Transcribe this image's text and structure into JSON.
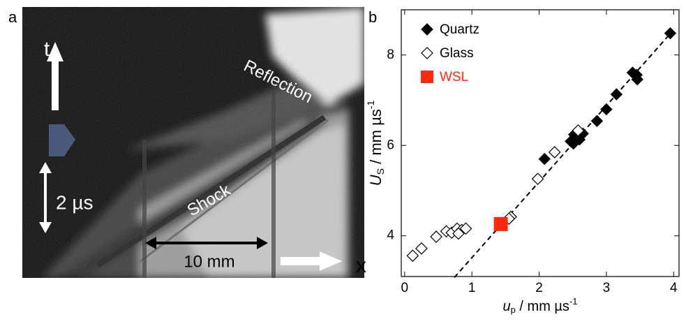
{
  "panel_a": {
    "label": "a",
    "time_axis": "t",
    "time_scale": "2 µs",
    "shock": "Shock",
    "reflection": "Reflection",
    "length_scale": "10 mm",
    "space_axis": "x"
  },
  "chart_data": {
    "type": "scatter",
    "label": "b",
    "x_label": {
      "symbol": "u",
      "subscript": "p",
      "unit": " / mm µs",
      "exponent": "-1"
    },
    "y_label": {
      "symbol": "U",
      "subscript": "S",
      "unit": " / mm µs",
      "exponent": "-1"
    },
    "xlim": [
      -0.05,
      4.08
    ],
    "ylim": [
      3.1,
      9.0
    ],
    "xticks": [
      0,
      1,
      2,
      3,
      4
    ],
    "yticks": [
      4,
      6,
      8
    ],
    "series": [
      {
        "name": "Quartz",
        "color": "#000000",
        "marker": "diamond-filled",
        "x": [
          3.95,
          3.45,
          3.39,
          3.46,
          3.15,
          3.0,
          2.86,
          2.65,
          2.55,
          2.47,
          2.51,
          2.6,
          2.08,
          2.52
        ],
        "values": [
          8.48,
          7.56,
          7.61,
          7.46,
          7.13,
          6.8,
          6.54,
          6.26,
          6.18,
          6.09,
          6.04,
          6.13,
          5.7,
          6.24
        ]
      },
      {
        "name": "Glass",
        "color": "#000000",
        "marker": "diamond-open",
        "x": [
          0.12,
          0.25,
          0.47,
          0.62,
          0.7,
          0.78,
          0.85,
          0.91,
          0.8,
          1.58,
          1.55,
          1.98,
          2.23,
          2.58
        ],
        "values": [
          3.56,
          3.72,
          3.98,
          4.1,
          4.07,
          4.16,
          4.13,
          4.16,
          4.05,
          4.42,
          4.38,
          5.26,
          5.85,
          6.33
        ]
      },
      {
        "name": "WSL",
        "color": "#ff2a0d",
        "marker": "square",
        "x": [
          1.43
        ],
        "values": [
          4.26
        ]
      },
      {
        "color": "#000000",
        "marker": "dashed-line",
        "x": [
          0.74,
          3.99
        ],
        "values": [
          3.08,
          8.54
        ]
      }
    ]
  }
}
